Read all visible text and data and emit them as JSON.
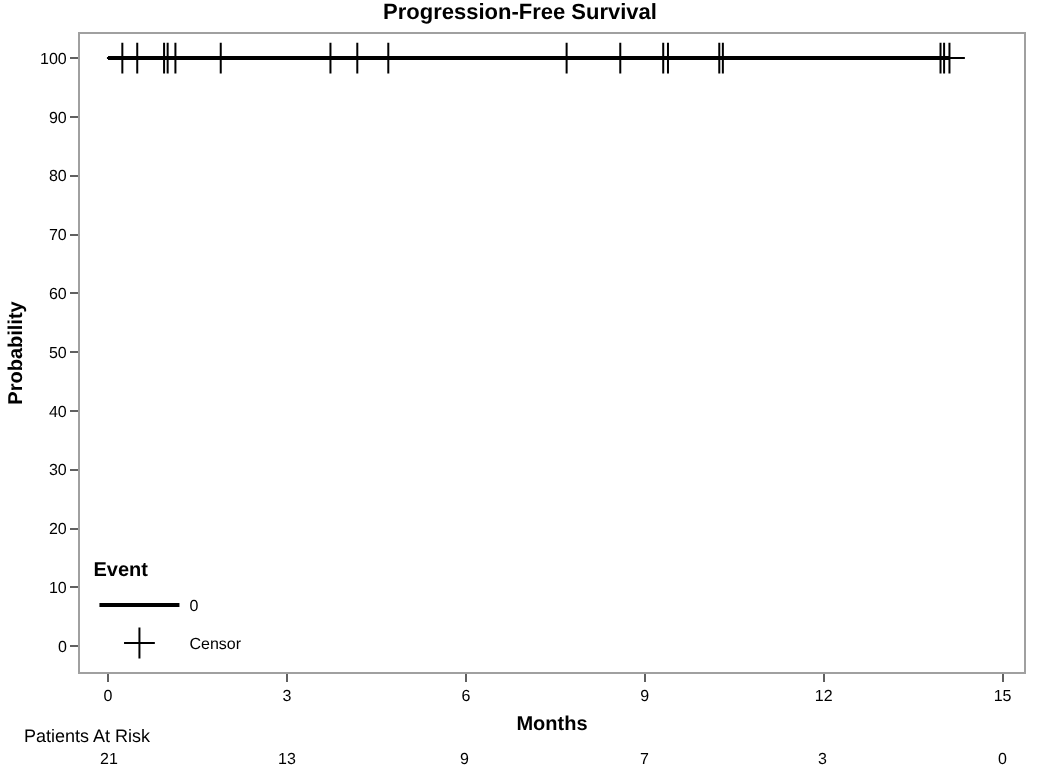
{
  "chart_data": {
    "type": "step",
    "title": "Progression-Free Survival",
    "xlabel": "Months",
    "ylabel": "Probability",
    "legend_title": "Event",
    "series": [
      {
        "name": "0",
        "color": "#000000",
        "x": [
          0,
          14.11
        ],
        "values": [
          100,
          100
        ],
        "marker": "none"
      },
      {
        "name": "Censor",
        "type": "scatter",
        "color": "#000000",
        "marker": "cross",
        "x": [
          0.24,
          0.49,
          0.94,
          1.0,
          1.13,
          1.89,
          3.73,
          4.18,
          4.7,
          7.69,
          8.59,
          9.31,
          9.39,
          10.25,
          10.31,
          13.96,
          14.02,
          14.11
        ],
        "values": [
          100,
          100,
          100,
          100,
          100,
          100,
          100,
          100,
          100,
          100,
          100,
          100,
          100,
          100,
          100,
          100,
          100,
          100
        ]
      }
    ],
    "xlim": [
      -0.47,
      15.36
    ],
    "xticks": [
      0,
      3,
      6,
      9,
      12,
      15
    ],
    "ylim": [
      -4.4,
      104.1
    ],
    "yticks": [
      0,
      10,
      20,
      30,
      40,
      50,
      60,
      70,
      80,
      90,
      100
    ],
    "grid": false,
    "legend": "bottom left",
    "annotations": [
      "Patients At Risk",
      "21",
      "13",
      "9",
      "7",
      "3",
      "0"
    ]
  }
}
